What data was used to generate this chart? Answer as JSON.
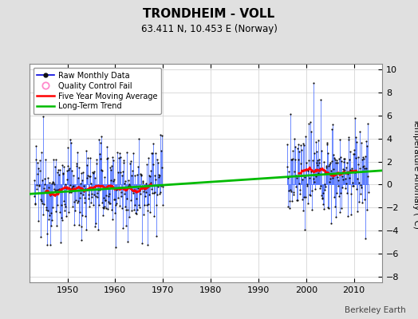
{
  "title": "TRONDHEIM - VOLL",
  "subtitle": "63.411 N, 10.453 E (Norway)",
  "ylabel": "Temperature Anomaly (°C)",
  "credit": "Berkeley Earth",
  "ylim": [
    -8.5,
    10.5
  ],
  "yticks": [
    -8,
    -6,
    -4,
    -2,
    0,
    2,
    4,
    6,
    8,
    10
  ],
  "xlim": [
    1942,
    2016
  ],
  "xticks": [
    1950,
    1960,
    1970,
    1980,
    1990,
    2000,
    2010
  ],
  "bg_color": "#e0e0e0",
  "plot_bg_color": "#ffffff",
  "period1_start_y": 1943,
  "period1_end_y": 1970,
  "period2_start_y": 1996,
  "period2_end_y": 2013,
  "trend_x": [
    1942,
    2016
  ],
  "trend_y": [
    -0.82,
    1.22
  ],
  "raw_line_color": "#5577ff",
  "raw_dot_color": "#111111",
  "moving_avg_color": "#ff0000",
  "trend_color": "#00bb00",
  "noise_scale": 2.0,
  "title_fontsize": 11,
  "subtitle_fontsize": 8.5,
  "tick_fontsize": 8,
  "ylabel_fontsize": 7.5,
  "legend_fontsize": 7,
  "credit_fontsize": 7.5
}
